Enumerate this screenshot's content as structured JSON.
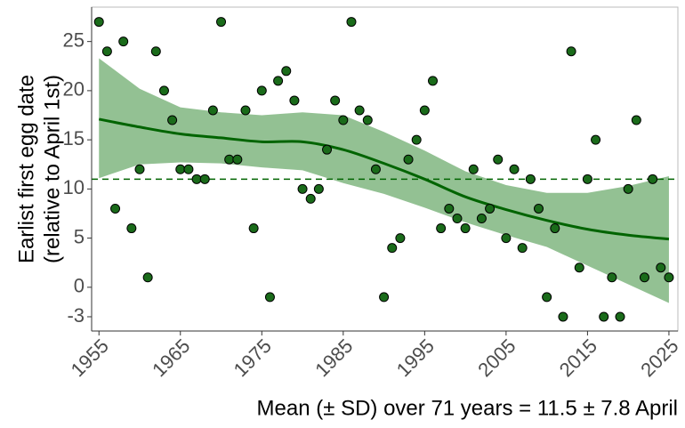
{
  "chart_data": {
    "type": "scatter",
    "ylabel": [
      "Earlist first egg date",
      "(relative to April 1st)"
    ],
    "annotation": "Mean (± SD) over 71 years = 11.5 ± 7.8 April",
    "annotation_color": "#0f7a0f",
    "x": [
      1955,
      1956,
      1957,
      1958,
      1959,
      1960,
      1961,
      1962,
      1963,
      1964,
      1965,
      1966,
      1967,
      1968,
      1969,
      1970,
      1971,
      1972,
      1973,
      1974,
      1975,
      1976,
      1977,
      1978,
      1979,
      1980,
      1981,
      1982,
      1983,
      1984,
      1985,
      1986,
      1987,
      1988,
      1989,
      1990,
      1991,
      1992,
      1993,
      1994,
      1995,
      1996,
      1997,
      1998,
      1999,
      2000,
      2001,
      2002,
      2003,
      2004,
      2005,
      2006,
      2007,
      2008,
      2009,
      2010,
      2011,
      2012,
      2013,
      2014,
      2015,
      2016,
      2017,
      2018,
      2019,
      2020,
      2021,
      2022,
      2023,
      2024,
      2025
    ],
    "values": [
      27,
      24,
      8,
      25,
      6,
      12,
      1,
      24,
      20,
      17,
      12,
      12,
      11,
      11,
      18,
      27,
      13,
      13,
      18,
      6,
      20,
      -1,
      21,
      22,
      19,
      10,
      9,
      10,
      14,
      19,
      17,
      27,
      18,
      17,
      12,
      -1,
      4,
      5,
      13,
      15,
      18,
      21,
      6,
      8,
      7,
      6,
      12,
      7,
      8,
      13,
      5,
      12,
      4,
      11,
      8,
      -1,
      6,
      -3,
      24,
      2,
      11,
      15,
      -3,
      1,
      -3,
      10,
      17,
      1,
      11,
      2,
      1
    ],
    "color": "#1a6b1a",
    "edgecolor": "#000000",
    "smooth": {
      "x": [
        1955,
        1960,
        1965,
        1970,
        1975,
        1980,
        1985,
        1990,
        1995,
        2000,
        2005,
        2010,
        2015,
        2020,
        2025
      ],
      "values": [
        17.1,
        16.3,
        15.6,
        15.2,
        14.8,
        14.8,
        14.0,
        12.6,
        11.0,
        9.2,
        7.9,
        6.8,
        5.9,
        5.3,
        4.9
      ],
      "upper": [
        23.3,
        20.2,
        18.3,
        17.8,
        17.5,
        17.8,
        17.5,
        15.8,
        13.9,
        11.8,
        10.4,
        9.6,
        9.6,
        10.3,
        11.3
      ],
      "lower": [
        11.1,
        12.5,
        12.7,
        12.6,
        12.2,
        11.9,
        10.6,
        9.5,
        8.1,
        6.6,
        5.3,
        4.1,
        2.2,
        0.3,
        -1.6
      ],
      "color": "#006400",
      "band_color": "#93c193"
    },
    "hline": {
      "value": 11,
      "color": "#006400",
      "style": "dashed"
    },
    "xlim": [
      1954.1,
      2026.1
    ],
    "ylim": [
      -4.45,
      28.5
    ],
    "xticks": [
      1955,
      1965,
      1975,
      1985,
      1995,
      2005,
      2015,
      2025
    ],
    "yticks": [
      -3,
      0,
      5,
      10,
      15,
      20,
      25
    ]
  }
}
